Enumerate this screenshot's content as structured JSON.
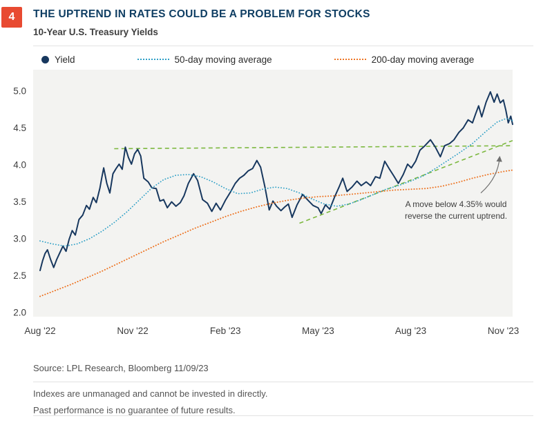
{
  "badge": {
    "number": "4"
  },
  "header": {
    "title": "THE UPTREND IN RATES COULD BE A PROBLEM FOR STOCKS",
    "subtitle": "10-Year U.S. Treasury Yields"
  },
  "annotation": {
    "lines": [
      "A move below 4.35% would",
      "reverse the current uptrend."
    ]
  },
  "footer": {
    "source": "Source: LPL Research, Bloomberg  11/09/23",
    "disclaimer1": "Indexes are unmanaged and cannot be invested in directly.",
    "disclaimer2": "Past performance is no guarantee of future results."
  },
  "colors": {
    "badge": "#e84a31",
    "title_navy": "#0f3e63",
    "yield_line": "#17375e",
    "ma50_line": "#2d9fc6",
    "ma200_line": "#ed7423",
    "trendline_green": "#7cb83f",
    "plot_background": "#f3f3f1"
  },
  "chart_data": {
    "type": "line",
    "title": "10-Year U.S. Treasury Yields",
    "grid": false,
    "legend_position": "top",
    "xlim": [
      0,
      15.3
    ],
    "ylim": [
      2.0,
      5.0
    ],
    "x_tick_values": [
      0,
      3,
      6,
      9,
      12,
      15
    ],
    "x_ticks": [
      "Aug '22",
      "Nov '22",
      "Feb '23",
      "May '23",
      "Aug '23",
      "Nov '23"
    ],
    "y_ticks": [
      5.0,
      4.5,
      4.0,
      3.5,
      3.0,
      2.5,
      2.0
    ],
    "plot_bg": "#f3f3f1",
    "series": [
      {
        "id": "yield",
        "name": "Yield",
        "color": "#17375e",
        "style": "solid",
        "width": 2,
        "points": [
          [
            0,
            2.57
          ],
          [
            0.08,
            2.7
          ],
          [
            0.16,
            2.8
          ],
          [
            0.24,
            2.85
          ],
          [
            0.34,
            2.72
          ],
          [
            0.44,
            2.61
          ],
          [
            0.54,
            2.72
          ],
          [
            0.64,
            2.81
          ],
          [
            0.74,
            2.9
          ],
          [
            0.84,
            2.83
          ],
          [
            0.94,
            2.99
          ],
          [
            1.04,
            3.11
          ],
          [
            1.14,
            3.05
          ],
          [
            1.26,
            3.26
          ],
          [
            1.38,
            3.32
          ],
          [
            1.5,
            3.45
          ],
          [
            1.6,
            3.4
          ],
          [
            1.72,
            3.56
          ],
          [
            1.82,
            3.49
          ],
          [
            1.94,
            3.69
          ],
          [
            2.0,
            3.83
          ],
          [
            2.06,
            3.96
          ],
          [
            2.16,
            3.75
          ],
          [
            2.26,
            3.62
          ],
          [
            2.36,
            3.88
          ],
          [
            2.46,
            3.95
          ],
          [
            2.56,
            4.01
          ],
          [
            2.66,
            3.94
          ],
          [
            2.76,
            4.24
          ],
          [
            2.86,
            4.1
          ],
          [
            2.96,
            4.01
          ],
          [
            3.06,
            4.15
          ],
          [
            3.16,
            4.21
          ],
          [
            3.26,
            4.12
          ],
          [
            3.36,
            3.82
          ],
          [
            3.5,
            3.77
          ],
          [
            3.62,
            3.69
          ],
          [
            3.76,
            3.68
          ],
          [
            3.88,
            3.51
          ],
          [
            4.0,
            3.53
          ],
          [
            4.12,
            3.42
          ],
          [
            4.26,
            3.5
          ],
          [
            4.4,
            3.44
          ],
          [
            4.54,
            3.49
          ],
          [
            4.66,
            3.58
          ],
          [
            4.8,
            3.75
          ],
          [
            4.97,
            3.88
          ],
          [
            5.1,
            3.79
          ],
          [
            5.26,
            3.53
          ],
          [
            5.42,
            3.48
          ],
          [
            5.56,
            3.37
          ],
          [
            5.7,
            3.48
          ],
          [
            5.84,
            3.39
          ],
          [
            6.0,
            3.52
          ],
          [
            6.16,
            3.63
          ],
          [
            6.32,
            3.75
          ],
          [
            6.46,
            3.82
          ],
          [
            6.6,
            3.86
          ],
          [
            6.74,
            3.92
          ],
          [
            6.88,
            3.95
          ],
          [
            7.02,
            4.06
          ],
          [
            7.14,
            3.97
          ],
          [
            7.28,
            3.7
          ],
          [
            7.42,
            3.39
          ],
          [
            7.54,
            3.51
          ],
          [
            7.66,
            3.44
          ],
          [
            7.8,
            3.38
          ],
          [
            7.92,
            3.43
          ],
          [
            8.04,
            3.47
          ],
          [
            8.16,
            3.29
          ],
          [
            8.32,
            3.46
          ],
          [
            8.5,
            3.6
          ],
          [
            8.68,
            3.52
          ],
          [
            8.84,
            3.45
          ],
          [
            9.0,
            3.42
          ],
          [
            9.1,
            3.34
          ],
          [
            9.24,
            3.46
          ],
          [
            9.38,
            3.4
          ],
          [
            9.54,
            3.57
          ],
          [
            9.68,
            3.7
          ],
          [
            9.8,
            3.82
          ],
          [
            9.94,
            3.64
          ],
          [
            10.1,
            3.7
          ],
          [
            10.26,
            3.78
          ],
          [
            10.4,
            3.72
          ],
          [
            10.56,
            3.77
          ],
          [
            10.7,
            3.72
          ],
          [
            10.86,
            3.84
          ],
          [
            11.0,
            3.82
          ],
          [
            11.16,
            4.05
          ],
          [
            11.3,
            3.95
          ],
          [
            11.44,
            3.86
          ],
          [
            11.6,
            3.75
          ],
          [
            11.76,
            3.87
          ],
          [
            11.9,
            4.01
          ],
          [
            12.02,
            3.96
          ],
          [
            12.16,
            4.05
          ],
          [
            12.3,
            4.2
          ],
          [
            12.46,
            4.26
          ],
          [
            12.64,
            4.34
          ],
          [
            12.8,
            4.24
          ],
          [
            12.96,
            4.11
          ],
          [
            13.1,
            4.26
          ],
          [
            13.26,
            4.29
          ],
          [
            13.4,
            4.34
          ],
          [
            13.56,
            4.44
          ],
          [
            13.7,
            4.5
          ],
          [
            13.86,
            4.61
          ],
          [
            14.0,
            4.57
          ],
          [
            14.1,
            4.69
          ],
          [
            14.2,
            4.8
          ],
          [
            14.3,
            4.65
          ],
          [
            14.44,
            4.85
          ],
          [
            14.58,
            4.99
          ],
          [
            14.7,
            4.85
          ],
          [
            14.8,
            4.96
          ],
          [
            14.9,
            4.84
          ],
          [
            15.0,
            4.88
          ],
          [
            15.08,
            4.74
          ],
          [
            15.16,
            4.57
          ],
          [
            15.24,
            4.66
          ],
          [
            15.3,
            4.55
          ]
        ]
      },
      {
        "id": "ma50",
        "name": "50-day moving average",
        "color": "#2d9fc6",
        "style": "dotted",
        "width": 1.8,
        "points": [
          [
            0,
            2.97
          ],
          [
            0.4,
            2.93
          ],
          [
            0.8,
            2.9
          ],
          [
            1.2,
            2.93
          ],
          [
            1.6,
            3.0
          ],
          [
            2.0,
            3.1
          ],
          [
            2.4,
            3.22
          ],
          [
            2.8,
            3.36
          ],
          [
            3.2,
            3.52
          ],
          [
            3.6,
            3.68
          ],
          [
            4.0,
            3.8
          ],
          [
            4.4,
            3.86
          ],
          [
            4.8,
            3.87
          ],
          [
            5.2,
            3.84
          ],
          [
            5.6,
            3.77
          ],
          [
            6.0,
            3.68
          ],
          [
            6.4,
            3.61
          ],
          [
            6.8,
            3.62
          ],
          [
            7.2,
            3.67
          ],
          [
            7.6,
            3.7
          ],
          [
            8.0,
            3.68
          ],
          [
            8.4,
            3.62
          ],
          [
            8.8,
            3.54
          ],
          [
            9.2,
            3.47
          ],
          [
            9.6,
            3.44
          ],
          [
            10.0,
            3.47
          ],
          [
            10.4,
            3.53
          ],
          [
            10.8,
            3.6
          ],
          [
            11.2,
            3.67
          ],
          [
            11.6,
            3.72
          ],
          [
            12.0,
            3.78
          ],
          [
            12.4,
            3.85
          ],
          [
            12.8,
            3.95
          ],
          [
            13.2,
            4.06
          ],
          [
            13.6,
            4.17
          ],
          [
            14.0,
            4.29
          ],
          [
            14.4,
            4.44
          ],
          [
            14.8,
            4.58
          ],
          [
            15.1,
            4.63
          ],
          [
            15.3,
            4.6
          ]
        ]
      },
      {
        "id": "ma200",
        "name": "200-day moving average",
        "color": "#ed7423",
        "style": "dotted",
        "width": 2,
        "points": [
          [
            0,
            2.22
          ],
          [
            0.5,
            2.3
          ],
          [
            1.0,
            2.38
          ],
          [
            1.5,
            2.47
          ],
          [
            2.0,
            2.56
          ],
          [
            2.5,
            2.66
          ],
          [
            3.0,
            2.76
          ],
          [
            3.5,
            2.86
          ],
          [
            4.0,
            2.96
          ],
          [
            4.5,
            3.05
          ],
          [
            5.0,
            3.14
          ],
          [
            5.5,
            3.22
          ],
          [
            6.0,
            3.3
          ],
          [
            6.5,
            3.37
          ],
          [
            7.0,
            3.43
          ],
          [
            7.5,
            3.48
          ],
          [
            8.0,
            3.52
          ],
          [
            8.5,
            3.55
          ],
          [
            9.0,
            3.57
          ],
          [
            9.5,
            3.58
          ],
          [
            10.0,
            3.6
          ],
          [
            10.5,
            3.62
          ],
          [
            11.0,
            3.64
          ],
          [
            11.5,
            3.66
          ],
          [
            12.0,
            3.67
          ],
          [
            12.5,
            3.68
          ],
          [
            13.0,
            3.71
          ],
          [
            13.5,
            3.76
          ],
          [
            14.0,
            3.82
          ],
          [
            14.5,
            3.87
          ],
          [
            15.0,
            3.91
          ],
          [
            15.3,
            3.93
          ]
        ]
      }
    ],
    "trend_lines": [
      {
        "id": "resistance",
        "color": "#7cb83f",
        "from": [
          2.4,
          4.22
        ],
        "to": [
          15.3,
          4.26
        ]
      },
      {
        "id": "support",
        "color": "#7cb83f",
        "from": [
          8.4,
          3.21
        ],
        "to": [
          15.3,
          4.33
        ]
      }
    ],
    "annotation_arrow": {
      "from": [
        14.27,
        3.62
      ],
      "control": [
        14.82,
        3.82
      ],
      "to": [
        14.88,
        4.1
      ],
      "color": "#6f6f6f"
    }
  }
}
